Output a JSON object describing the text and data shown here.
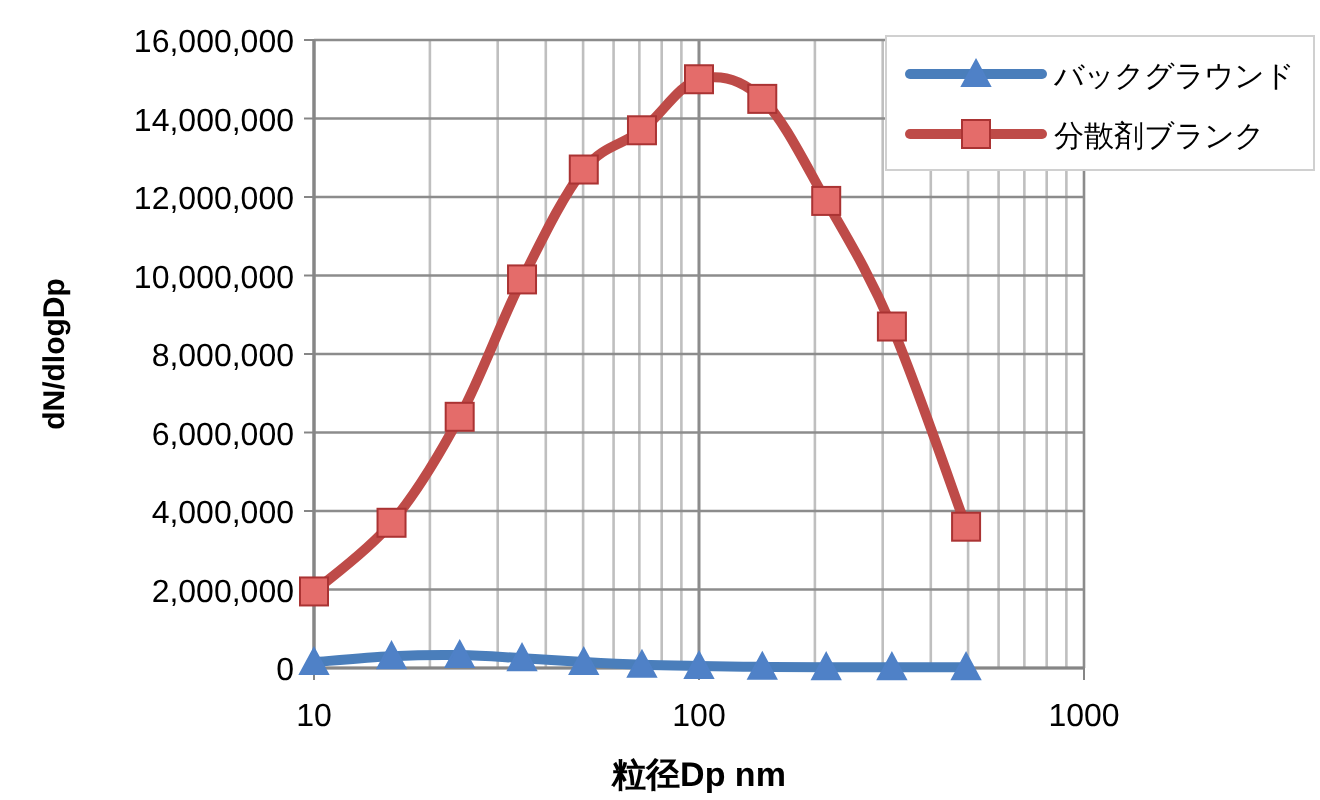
{
  "chart_data": {
    "type": "line",
    "xlabel": "粒径Dp nm",
    "ylabel": "dN/dlogDp",
    "log": "x",
    "x": [
      10,
      15.9,
      23.9,
      34.7,
      50.2,
      71.1,
      100,
      146,
      214,
      317,
      494
    ],
    "xlim": [
      10,
      1000
    ],
    "xticks": [
      10,
      100,
      1000
    ],
    "ylim": [
      0,
      16000000
    ],
    "yticks": [
      {
        "value": 0,
        "label": "0"
      },
      {
        "value": 2000000,
        "label": "2,000,000"
      },
      {
        "value": 4000000,
        "label": "4,000,000"
      },
      {
        "value": 6000000,
        "label": "6,000,000"
      },
      {
        "value": 8000000,
        "label": "8,000,000"
      },
      {
        "value": 10000000,
        "label": "10,000,000"
      },
      {
        "value": 12000000,
        "label": "12,000,000"
      },
      {
        "value": 14000000,
        "label": "14,000,000"
      },
      {
        "value": 16000000,
        "label": "16,000,000"
      }
    ],
    "grid": true,
    "legend": "top right",
    "line_style": "solid",
    "series": [
      {
        "name": "バックグラウンド",
        "color": "#4a7ebb",
        "marker": "triangle",
        "values": [
          150000,
          300000,
          330000,
          250000,
          150000,
          80000,
          50000,
          30000,
          20000,
          20000,
          20000
        ]
      },
      {
        "name": "分散剤ブランク",
        "color": "#be4b48",
        "marker": "square",
        "values": [
          1950000,
          3700000,
          6400000,
          9900000,
          12700000,
          13700000,
          15000000,
          14500000,
          11900000,
          8700000,
          3600000
        ]
      }
    ]
  }
}
